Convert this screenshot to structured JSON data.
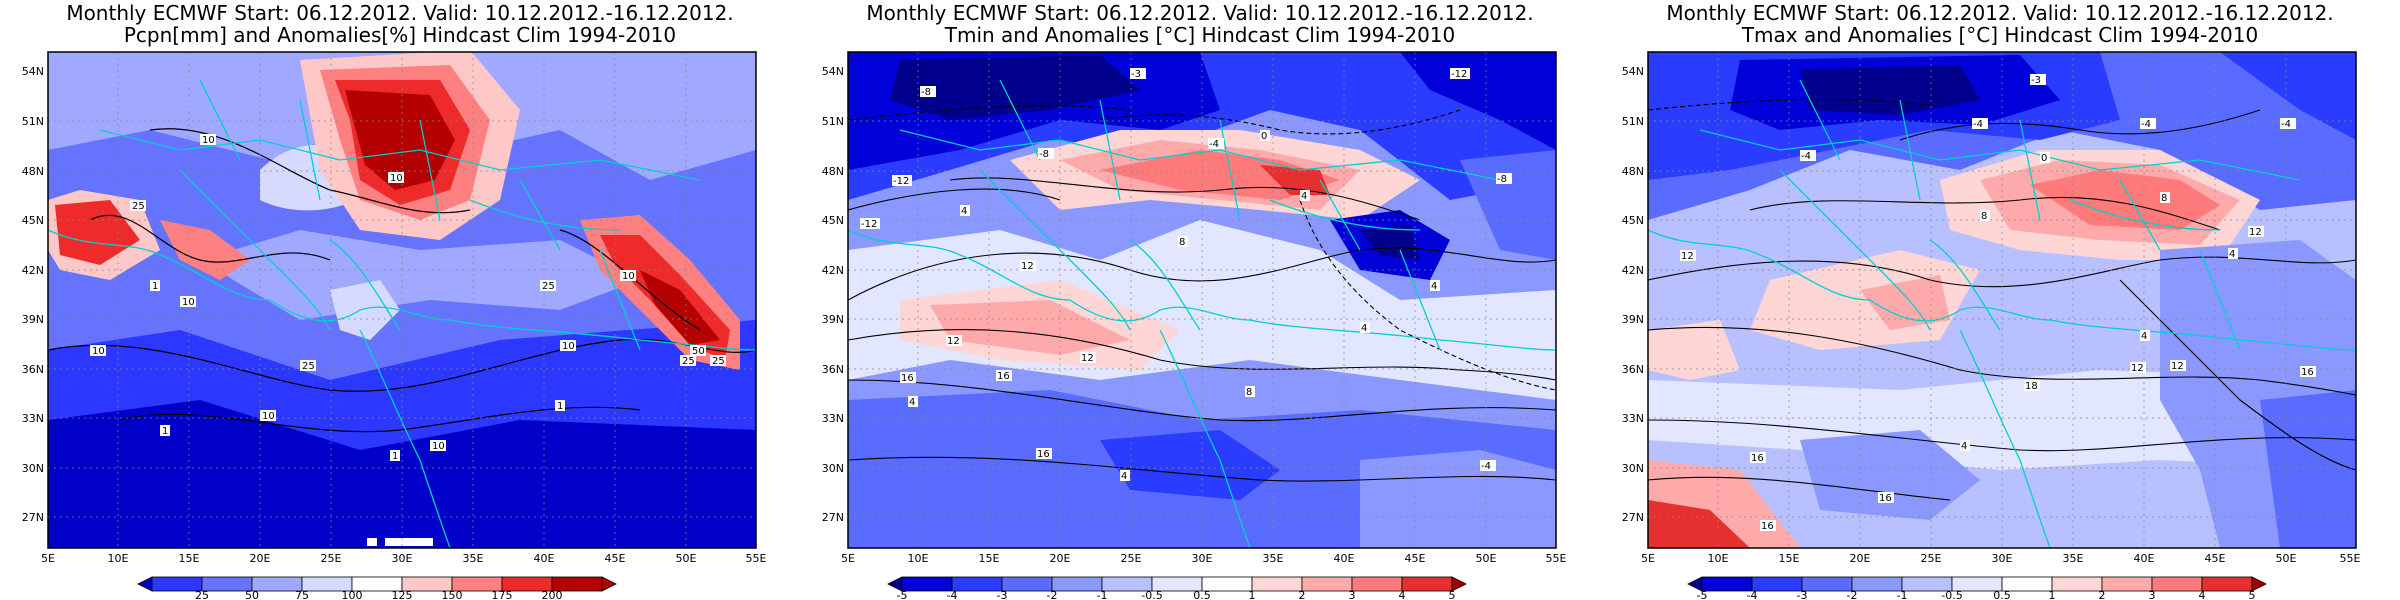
{
  "panels": [
    {
      "title_line1": "Monthly ECMWF Start: 06.12.2012. Valid: 10.12.2012.-16.12.2012.",
      "title_line2": "Pcpn[mm] and Anomalies[%] Hindcast Clim 1994-2010",
      "colorbar": [
        "25",
        "50",
        "75",
        "100",
        "125",
        "150",
        "175",
        "200"
      ],
      "colors": [
        "#0000c8",
        "#2c37ff",
        "#6673ff",
        "#a0a8ff",
        "#d6daff",
        "#ffffff",
        "#ffc8c8",
        "#ff8080",
        "#ee2a2a",
        "#b40000"
      ]
    },
    {
      "title_line1": "Monthly ECMWF Start: 06.12.2012. Valid: 10.12.2012.-16.12.2012.",
      "title_line2": "Tmin and Anomalies [°C] Hindcast Clim 1994-2010",
      "colorbar": [
        "-5",
        "-4",
        "-3",
        "-2",
        "-1",
        "-0.5",
        "0.5",
        "1",
        "2",
        "3",
        "4",
        "5"
      ],
      "colors": [
        "#00008c",
        "#0000d8",
        "#2a3cff",
        "#5a6cff",
        "#8a98ff",
        "#b8c0ff",
        "#e2e6ff",
        "#ffffff",
        "#ffd6d6",
        "#ffaaaa",
        "#ff7a7a",
        "#e63030",
        "#a00000"
      ]
    },
    {
      "title_line1": "Monthly ECMWF Start: 06.12.2012. Valid: 10.12.2012.-16.12.2012.",
      "title_line2": "Tmax and Anomalies [°C] Hindcast Clim 1994-2010",
      "colorbar": [
        "-5",
        "-4",
        "-3",
        "-2",
        "-1",
        "-0.5",
        "0.5",
        "1",
        "2",
        "3",
        "4",
        "5"
      ],
      "colors": [
        "#00008c",
        "#0000d8",
        "#2a3cff",
        "#5a6cff",
        "#8a98ff",
        "#b8c0ff",
        "#e2e6ff",
        "#ffffff",
        "#ffd6d6",
        "#ffaaaa",
        "#ff7a7a",
        "#e63030",
        "#a00000"
      ]
    }
  ],
  "axes": {
    "lon_labels": [
      "5E",
      "10E",
      "15E",
      "20E",
      "25E",
      "30E",
      "35E",
      "40E",
      "45E",
      "50E",
      "55E"
    ],
    "lat_labels": [
      "27N",
      "30N",
      "33N",
      "36N",
      "39N",
      "42N",
      "45N",
      "48N",
      "51N",
      "54N"
    ]
  },
  "contour_labels": {
    "p1": [
      "10",
      "10",
      "25",
      "1",
      "10",
      "25",
      "25",
      "10",
      "10",
      "25",
      "50",
      "25",
      "10",
      "10",
      "1",
      "10",
      "1",
      "1"
    ],
    "p2": [
      "-3",
      "-12",
      "-8",
      "-12",
      "-8",
      "-4",
      "-12",
      "0",
      "4",
      "4",
      "-8",
      "8",
      "4",
      "12",
      "12",
      "16",
      "8",
      "4",
      "-4",
      "4",
      "12",
      "16",
      "16",
      "4"
    ],
    "p3": [
      "-3",
      "-4",
      "-4",
      "0",
      "-4",
      "-4",
      "8",
      "12",
      "12",
      "4",
      "8",
      "4",
      "12",
      "16",
      "16",
      "12",
      "4",
      "16",
      "18",
      "16"
    ]
  }
}
